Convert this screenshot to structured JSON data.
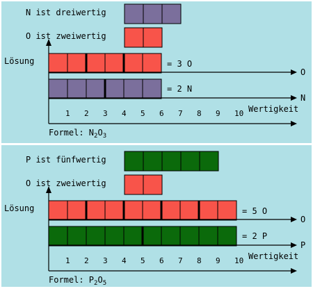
{
  "colors": {
    "background": "#b0e0e6",
    "frame": "#ffffff",
    "nitrogen": "#7b6f9c",
    "oxygen": "#f8544a",
    "phosphorus": "#0b6a0b",
    "line": "#000000"
  },
  "axis_ticks": [
    "1",
    "2",
    "3",
    "4",
    "5",
    "6",
    "7",
    "8",
    "9",
    "10"
  ],
  "axis_label": "Wertigkeit",
  "panel1": {
    "element1_label": "N ist dreiwertig",
    "element1_valence": 3,
    "element1_color": "#7b6f9c",
    "element2_label": "O ist zweiwertig",
    "element2_valence": 2,
    "element2_color": "#f8544a",
    "solution_label": "Lösung",
    "row_top_total": 6,
    "row_top_group": 2,
    "row_top_color": "#f8544a",
    "row_top_result": "= 3 O",
    "row_top_axis": "O",
    "row_bottom_total": 6,
    "row_bottom_group": 3,
    "row_bottom_color": "#7b6f9c",
    "row_bottom_result": "= 2 N",
    "row_bottom_axis": "N",
    "formula_prefix": "Formel: N",
    "formula_sub1": "2",
    "formula_mid": "O",
    "formula_sub2": "3"
  },
  "panel2": {
    "element1_label": "P ist fünfwertig",
    "element1_valence": 5,
    "element1_color": "#0b6a0b",
    "element2_label": "O ist zweiwertig",
    "element2_valence": 2,
    "element2_color": "#f8544a",
    "solution_label": "Lösung",
    "row_top_total": 10,
    "row_top_group": 2,
    "row_top_color": "#f8544a",
    "row_top_result": "= 5 O",
    "row_top_axis": "O",
    "row_bottom_total": 10,
    "row_bottom_group": 5,
    "row_bottom_color": "#0b6a0b",
    "row_bottom_result": "= 2 P",
    "row_bottom_axis": "P",
    "formula_prefix": "Formel: P",
    "formula_sub1": "2",
    "formula_mid": "O",
    "formula_sub2": "5"
  }
}
